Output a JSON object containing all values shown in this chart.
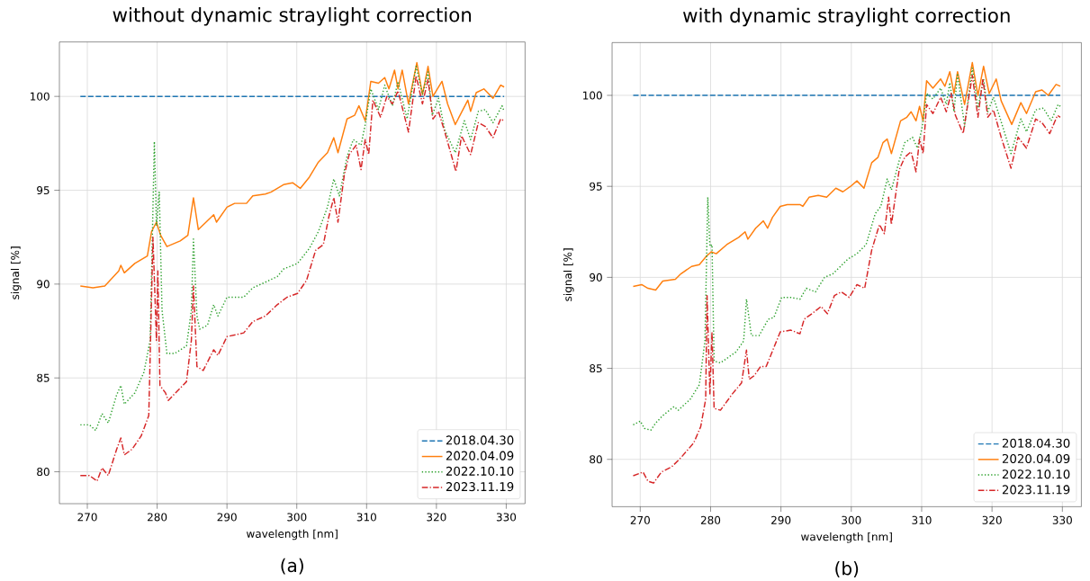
{
  "chart_data": [
    {
      "type": "line",
      "title": "without dynamic straylight correction",
      "xlabel": "wavelength [nm]",
      "ylabel": "signal [%]",
      "annotations": [
        "(a)"
      ],
      "xlim": [
        266,
        332.7
      ],
      "ylim": [
        78.3,
        102.9
      ],
      "xticks": [
        270,
        280,
        290,
        300,
        310,
        320,
        330
      ],
      "yticks": [
        80,
        85,
        90,
        95,
        100
      ],
      "grid": true,
      "legend": "bottom right",
      "series": [
        {
          "name": "2018.04.30",
          "color": "#1f77b4",
          "line_style": "dashed",
          "x": [
            269.0,
            329.7
          ],
          "values": [
            100,
            100
          ]
        },
        {
          "name": "2020.04.09",
          "color": "#ff7f0e",
          "line_style": "solid",
          "x": [
            269.0,
            270.8,
            272.5,
            274.5,
            274.8,
            275.3,
            276.8,
            278.6,
            279.2,
            279.9,
            280.5,
            281.4,
            283.3,
            284.4,
            285.2,
            285.9,
            288.1,
            288.5,
            290.0,
            291.1,
            292.8,
            293.7,
            295.5,
            296.3,
            298.1,
            299.4,
            300.5,
            301.8,
            303.1,
            304.4,
            305.3,
            305.9,
            307.2,
            308.3,
            308.9,
            309.8,
            310.6,
            311.7,
            312.6,
            313.2,
            314.0,
            314.5,
            315.1,
            316.0,
            317.2,
            318.0,
            318.8,
            319.5,
            320.8,
            321.6,
            322.7,
            324.5,
            324.9,
            325.7,
            326.8,
            328.1,
            329.2,
            329.7
          ],
          "values": [
            89.9,
            89.8,
            89.9,
            90.7,
            91.0,
            90.6,
            91.1,
            91.5,
            92.8,
            93.3,
            92.6,
            92.0,
            92.3,
            92.6,
            94.6,
            92.9,
            93.7,
            93.3,
            94.1,
            94.3,
            94.3,
            94.7,
            94.8,
            94.9,
            95.3,
            95.4,
            95.1,
            95.7,
            96.5,
            97.0,
            97.8,
            97.0,
            98.8,
            99.0,
            99.5,
            98.7,
            100.8,
            100.7,
            101.0,
            100.4,
            101.4,
            100.4,
            101.4,
            99.6,
            101.8,
            100.1,
            101.6,
            100.0,
            100.8,
            99.6,
            98.5,
            99.8,
            99.2,
            100.2,
            100.4,
            99.9,
            100.6,
            100.5
          ]
        },
        {
          "name": "2022.10.10",
          "color": "#2ca02c",
          "line_style": "dotted",
          "x": [
            269.0,
            270.3,
            271.2,
            272.1,
            273.0,
            274.2,
            274.8,
            275.3,
            276.8,
            278.1,
            279.0,
            279.6,
            279.9,
            280.3,
            280.7,
            281.4,
            282.5,
            284.2,
            284.9,
            285.2,
            285.7,
            286.1,
            287.2,
            288.1,
            288.7,
            290.0,
            292.4,
            293.7,
            295.5,
            297.2,
            298.1,
            300.1,
            301.8,
            303.1,
            304.4,
            305.3,
            306.1,
            307.2,
            308.1,
            309.2,
            309.8,
            310.6,
            311.7,
            312.6,
            313.7,
            314.5,
            315.8,
            317.1,
            318.0,
            318.8,
            319.4,
            320.3,
            321.2,
            322.7,
            324.0,
            324.9,
            326.0,
            327.0,
            328.1,
            329.4,
            329.7
          ],
          "values": [
            82.5,
            82.5,
            82.2,
            83.1,
            82.6,
            84.1,
            84.6,
            83.6,
            84.2,
            85.3,
            87.0,
            97.6,
            93.1,
            94.9,
            88.6,
            86.3,
            86.3,
            86.7,
            88.6,
            92.4,
            88.3,
            87.6,
            87.8,
            88.9,
            88.3,
            89.3,
            89.3,
            89.8,
            90.1,
            90.4,
            90.8,
            91.1,
            91.9,
            92.8,
            94.1,
            95.6,
            94.7,
            96.8,
            97.7,
            97.4,
            98.5,
            100.4,
            99.3,
            100.6,
            99.5,
            100.8,
            98.8,
            101.6,
            100.1,
            101.3,
            99.0,
            99.9,
            98.2,
            97.0,
            98.7,
            97.7,
            99.2,
            99.3,
            98.6,
            99.5,
            99.2
          ]
        },
        {
          "name": "2023.11.19",
          "color": "#d62728",
          "line_style": "dashdot",
          "x": [
            269.0,
            270.3,
            271.4,
            272.1,
            273.0,
            274.2,
            274.8,
            275.3,
            276.4,
            277.7,
            278.8,
            279.4,
            279.9,
            280.1,
            280.4,
            281.2,
            281.6,
            284.2,
            284.9,
            285.2,
            285.7,
            286.6,
            288.1,
            288.7,
            290.0,
            292.4,
            293.7,
            295.5,
            297.2,
            298.6,
            300.1,
            301.4,
            302.7,
            303.8,
            304.6,
            305.3,
            305.9,
            306.8,
            307.5,
            308.5,
            309.2,
            309.8,
            310.3,
            310.9,
            312.0,
            312.9,
            313.7,
            314.5,
            316.0,
            317.1,
            318.0,
            318.8,
            319.5,
            320.3,
            321.2,
            322.8,
            323.6,
            324.9,
            326.0,
            327.0,
            328.1,
            329.2,
            329.7
          ],
          "values": [
            79.8,
            79.8,
            79.5,
            80.2,
            79.8,
            81.2,
            81.8,
            80.9,
            81.2,
            81.9,
            83.0,
            92.5,
            87.0,
            90.7,
            84.6,
            84.2,
            83.8,
            84.8,
            87.0,
            89.9,
            85.6,
            85.4,
            86.5,
            86.2,
            87.2,
            87.4,
            88.0,
            88.3,
            88.9,
            89.3,
            89.5,
            90.2,
            91.8,
            92.1,
            93.6,
            94.6,
            93.3,
            95.8,
            96.9,
            97.4,
            96.1,
            97.7,
            96.9,
            99.8,
            98.9,
            100.0,
            99.6,
            100.3,
            98.1,
            101.1,
            99.6,
            100.9,
            98.8,
            99.2,
            98.1,
            96.0,
            97.9,
            96.9,
            98.6,
            98.4,
            97.8,
            98.8,
            98.7
          ]
        }
      ]
    },
    {
      "type": "line",
      "title": "with dynamic straylight correction",
      "xlabel": "wavelength [nm]",
      "ylabel": "signal [%]",
      "annotations": [
        "(b)"
      ],
      "xlim": [
        266,
        332.7
      ],
      "ylim": [
        77.4,
        102.9
      ],
      "xticks": [
        270,
        280,
        290,
        300,
        310,
        320,
        330
      ],
      "yticks": [
        80,
        85,
        90,
        95,
        100
      ],
      "grid": true,
      "legend": "bottom right",
      "series": [
        {
          "name": "2018.04.30",
          "color": "#1f77b4",
          "line_style": "dashed",
          "x": [
            269.0,
            329.7
          ],
          "values": [
            100,
            100
          ]
        },
        {
          "name": "2020.04.09",
          "color": "#ff7f0e",
          "line_style": "solid",
          "x": [
            269.0,
            270.2,
            271.1,
            272.2,
            273.2,
            275.0,
            275.8,
            277.3,
            278.4,
            279.5,
            280.1,
            280.8,
            282.3,
            284.0,
            284.9,
            285.3,
            286.4,
            287.5,
            288.1,
            288.8,
            289.9,
            290.9,
            292.7,
            293.1,
            294.0,
            295.3,
            296.5,
            297.8,
            298.8,
            299.9,
            300.8,
            301.8,
            302.9,
            303.8,
            304.5,
            305.1,
            305.7,
            307.0,
            307.9,
            308.5,
            309.2,
            309.7,
            310.2,
            310.7,
            311.6,
            312.7,
            313.3,
            314.0,
            314.6,
            315.1,
            316.1,
            317.2,
            318.0,
            318.8,
            319.6,
            320.6,
            321.3,
            322.8,
            324.1,
            324.9,
            326.2,
            327.1,
            328.0,
            329.1,
            329.7
          ],
          "values": [
            89.5,
            89.6,
            89.4,
            89.3,
            89.8,
            89.9,
            90.2,
            90.6,
            90.7,
            91.2,
            91.4,
            91.3,
            91.8,
            92.2,
            92.5,
            92.1,
            92.7,
            93.1,
            92.7,
            93.3,
            93.9,
            94.0,
            94.0,
            93.9,
            94.4,
            94.5,
            94.4,
            94.9,
            94.7,
            95.0,
            95.3,
            94.9,
            96.3,
            96.6,
            97.4,
            97.6,
            96.8,
            98.6,
            98.8,
            99.1,
            98.6,
            99.4,
            98.6,
            100.8,
            100.4,
            100.9,
            100.5,
            101.3,
            100.1,
            101.3,
            99.5,
            101.8,
            100.0,
            101.6,
            100.1,
            100.9,
            99.7,
            98.4,
            99.6,
            99.0,
            100.2,
            100.3,
            100.0,
            100.6,
            100.5
          ]
        },
        {
          "name": "2022.10.10",
          "color": "#2ca02c",
          "line_style": "dotted",
          "x": [
            269.0,
            270.0,
            270.6,
            271.5,
            272.2,
            273.2,
            274.8,
            275.4,
            277.1,
            278.4,
            279.2,
            279.6,
            279.9,
            280.2,
            280.5,
            281.4,
            283.6,
            284.7,
            285.1,
            285.8,
            286.9,
            288.2,
            289.0,
            290.1,
            291.4,
            292.7,
            293.6,
            294.9,
            296.2,
            297.4,
            298.2,
            299.5,
            300.8,
            302.1,
            303.4,
            304.2,
            305.1,
            305.7,
            306.8,
            307.6,
            308.7,
            309.4,
            310.1,
            310.7,
            311.6,
            312.7,
            313.5,
            314.0,
            314.6,
            315.1,
            316.1,
            317.2,
            318.0,
            318.8,
            319.4,
            320.2,
            321.1,
            322.7,
            324.1,
            324.9,
            326.2,
            327.3,
            328.4,
            329.4,
            329.7
          ],
          "values": [
            81.9,
            82.1,
            81.7,
            81.6,
            82.0,
            82.4,
            82.9,
            82.7,
            83.3,
            84.1,
            86.5,
            94.4,
            91.7,
            91.8,
            85.4,
            85.3,
            85.9,
            86.5,
            88.8,
            86.8,
            86.8,
            87.7,
            87.8,
            88.9,
            88.9,
            88.8,
            89.4,
            89.2,
            90.0,
            90.2,
            90.5,
            91.0,
            91.3,
            91.8,
            93.5,
            93.9,
            95.4,
            94.8,
            96.4,
            97.4,
            97.7,
            97.1,
            98.3,
            100.1,
            99.8,
            100.4,
            99.5,
            100.7,
            99.1,
            101.2,
            98.3,
            101.5,
            99.3,
            100.9,
            99.1,
            99.9,
            98.8,
            96.8,
            98.7,
            98.0,
            99.2,
            99.3,
            98.6,
            99.5,
            99.4
          ]
        },
        {
          "name": "2023.11.19",
          "color": "#d62728",
          "line_style": "dashdot",
          "x": [
            269.0,
            270.4,
            271.1,
            271.9,
            273.0,
            274.5,
            275.8,
            277.6,
            278.6,
            279.3,
            279.5,
            279.9,
            280.2,
            280.5,
            281.4,
            283.1,
            284.4,
            285.1,
            285.5,
            286.2,
            287.1,
            287.9,
            289.9,
            291.4,
            292.7,
            293.3,
            294.4,
            295.7,
            296.6,
            297.6,
            298.6,
            299.7,
            300.8,
            301.9,
            302.9,
            304.0,
            304.7,
            305.3,
            305.7,
            306.8,
            307.6,
            308.5,
            309.2,
            309.7,
            310.2,
            310.7,
            311.6,
            312.7,
            313.5,
            314.2,
            314.8,
            315.9,
            317.2,
            318.0,
            318.7,
            319.4,
            320.2,
            321.3,
            322.7,
            323.7,
            324.9,
            326.2,
            327.1,
            328.2,
            329.3,
            329.7
          ],
          "values": [
            79.1,
            79.3,
            78.8,
            78.7,
            79.3,
            79.6,
            80.1,
            80.9,
            81.8,
            83.3,
            89.0,
            83.6,
            87.0,
            82.8,
            82.7,
            83.6,
            84.2,
            86.0,
            84.4,
            84.6,
            85.1,
            85.1,
            87.0,
            87.1,
            86.9,
            87.7,
            88.0,
            88.4,
            88.0,
            89.0,
            89.2,
            88.9,
            89.6,
            89.4,
            91.5,
            92.9,
            92.4,
            94.4,
            92.9,
            95.9,
            96.6,
            96.9,
            95.8,
            97.6,
            96.8,
            99.5,
            99.0,
            99.9,
            99.1,
            100.1,
            98.9,
            97.9,
            101.1,
            98.8,
            100.9,
            98.8,
            99.2,
            97.7,
            96.0,
            97.7,
            97.1,
            98.7,
            98.5,
            97.9,
            98.9,
            98.8
          ]
        }
      ]
    }
  ]
}
